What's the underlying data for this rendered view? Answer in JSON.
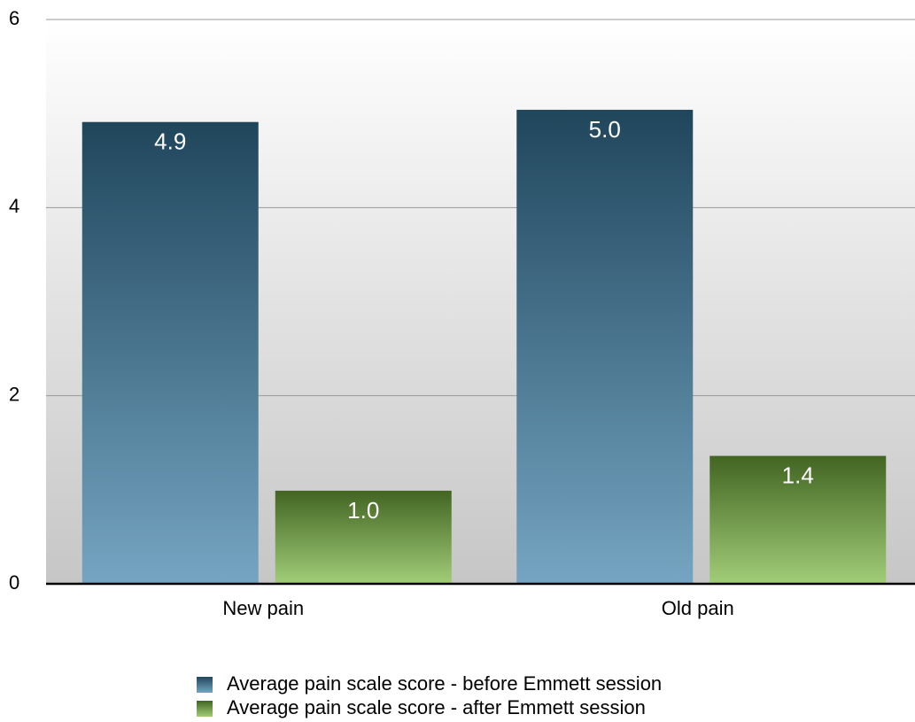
{
  "chart_data": {
    "type": "bar",
    "categories": [
      "New pain",
      "Old pain"
    ],
    "series": [
      {
        "name": "Average pain scale score - before Emmett session",
        "color": "#3a7fa8",
        "values": [
          4.91,
          5.04
        ],
        "value_labels": [
          "4.9",
          "5.0"
        ]
      },
      {
        "name": "Average pain scale score - after Emmett session",
        "color": "#78b83e",
        "values": [
          0.99,
          1.36
        ],
        "value_labels": [
          "1.0",
          "1.4"
        ]
      }
    ],
    "ylim": [
      0,
      6
    ],
    "yticks": [
      0,
      2,
      4,
      6
    ],
    "grid": true
  }
}
